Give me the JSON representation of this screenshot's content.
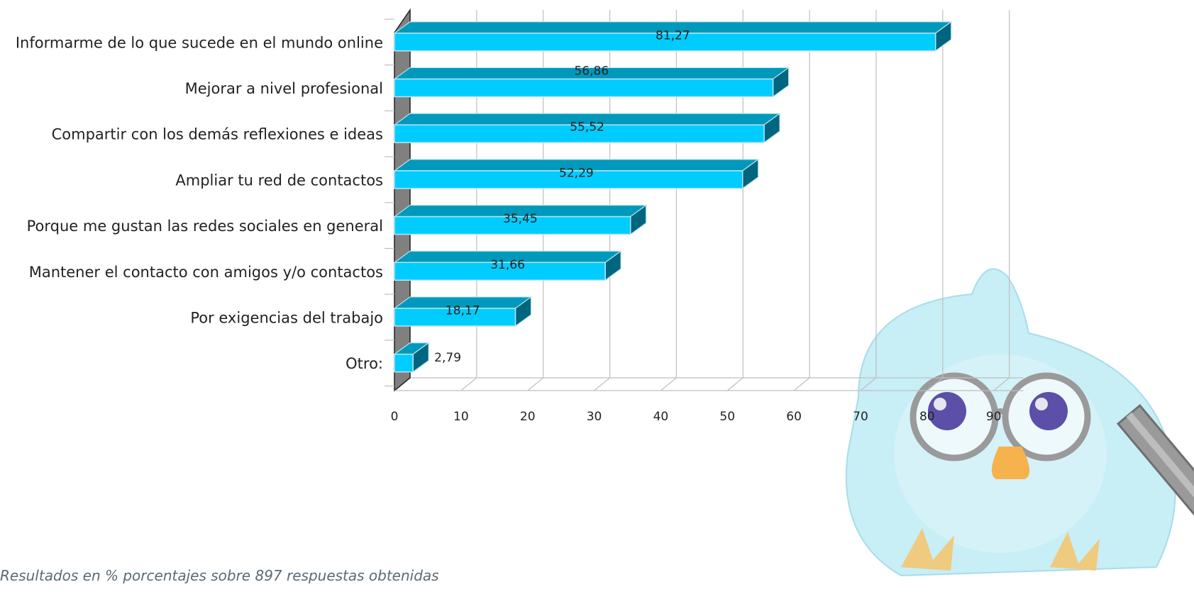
{
  "chart_data": {
    "type": "bar",
    "orientation": "horizontal",
    "style": "3d",
    "categories": [
      "Informarme de lo que sucede en el mundo online",
      "Mejorar a nivel profesional",
      "Compartir con los demás reflexiones e ideas",
      "Ampliar tu red de contactos",
      "Porque me gustan las redes sociales en general",
      "Mantener el contacto con amigos y/o contactos",
      "Por exigencias del trabajo",
      "Otro:"
    ],
    "values": [
      81.27,
      56.86,
      55.52,
      52.29,
      35.45,
      31.66,
      18.17,
      2.79
    ],
    "value_labels": [
      "81,27",
      "56,86",
      "55,52",
      "52,29",
      "35,45",
      "31,66",
      "18,17",
      "2,79"
    ],
    "xticks": [
      0,
      10,
      20,
      30,
      40,
      50,
      60,
      70,
      80,
      90
    ],
    "xlim": [
      0,
      90
    ],
    "grid": true,
    "legend": "none",
    "colors": {
      "bar_front": "#00ccff",
      "bar_top": "#0099bb",
      "bar_side": "#006680",
      "bar_border": "#bde3ee",
      "grid": "#bfbfbf",
      "wall": "#808080",
      "text": "#222222"
    }
  },
  "footnote": "Resultados en % porcentajes sobre 897 respuestas obtenidas",
  "mascot": {
    "icon": "bird-with-glasses-and-pencil-icon"
  }
}
